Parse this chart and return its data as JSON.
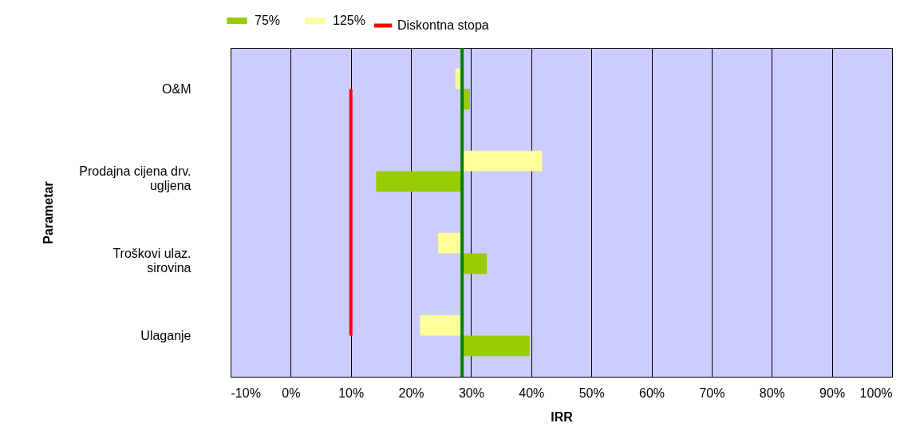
{
  "chart_data": {
    "type": "bar",
    "orientation": "horizontal",
    "xlabel": "IRR",
    "ylabel": "Parametar",
    "categories": [
      "O&M",
      "Prodajna cijena drv.\nugljena",
      "Troškovi ulaz.\nsirovina",
      "Ulaganje"
    ],
    "series": [
      {
        "name": "75%",
        "color": "#99cc00",
        "base": [
          28.5,
          28.5,
          28.5,
          28.5
        ],
        "values": [
          1.3,
          -14.3,
          4.1,
          11.2
        ]
      },
      {
        "name": "125%",
        "color": "#ffff99",
        "base": [
          28.5,
          28.5,
          28.5,
          28.5
        ],
        "values": [
          -1.1,
          13.3,
          -4.0,
          -7.0
        ]
      }
    ],
    "xlim": [
      -10,
      100
    ],
    "xticks": [
      {
        "value": -10,
        "label": "-10%"
      },
      {
        "value": 0,
        "label": "0%"
      },
      {
        "value": 10,
        "label": "10%"
      },
      {
        "value": 20,
        "label": "20%"
      },
      {
        "value": 30,
        "label": "30%"
      },
      {
        "value": 40,
        "label": "40%"
      },
      {
        "value": 50,
        "label": "50%"
      },
      {
        "value": 60,
        "label": "60%"
      },
      {
        "value": 70,
        "label": "70%"
      },
      {
        "value": 80,
        "label": "80%"
      },
      {
        "value": 90,
        "label": "90%"
      },
      {
        "value": 100,
        "label": "100%"
      }
    ],
    "ref_lines": [
      {
        "axis": "x",
        "value": 10,
        "label": "Diskontna stopa",
        "color": "#ff0000"
      },
      {
        "axis": "x",
        "value": 28.5,
        "color": "#008000"
      }
    ],
    "grid": "x",
    "legend": "top"
  }
}
